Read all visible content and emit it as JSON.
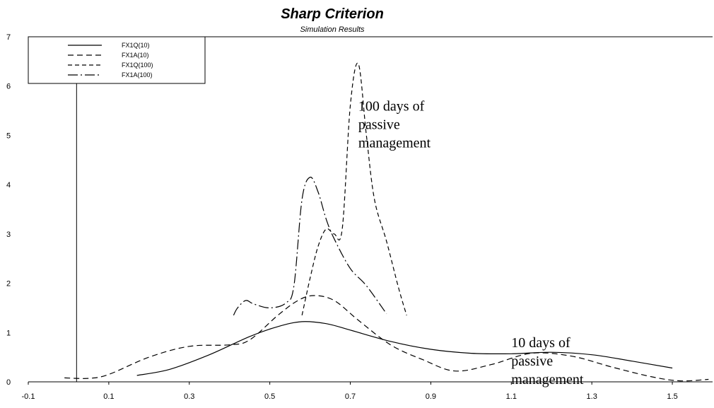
{
  "chart_data": {
    "type": "line",
    "title": "Sharp Criterion",
    "subtitle": "Simulation Results",
    "xlabel": "",
    "ylabel": "",
    "xlim": [
      -0.1,
      1.6
    ],
    "ylim": [
      0,
      7
    ],
    "x_ticks": [
      -0.1,
      0.1,
      0.3,
      0.5,
      0.7,
      0.9,
      1.1,
      1.3,
      1.5
    ],
    "y_ticks": [
      0,
      1,
      2,
      3,
      4,
      5,
      6,
      7
    ],
    "x_tick_labels": [
      "-0.1",
      "0.1",
      "0.3",
      "0.5",
      "0.7",
      "0.9",
      "1.1",
      "1.3",
      "1.5"
    ],
    "y_tick_labels": [
      "0",
      "1",
      "2",
      "3",
      "4",
      "5",
      "6",
      "7"
    ],
    "grid": false,
    "legend_position": "top-left",
    "series": [
      {
        "name": "FX1Q(10)",
        "dash": "solid",
        "color": "#000000",
        "points": [
          [
            0.17,
            0.13
          ],
          [
            0.25,
            0.25
          ],
          [
            0.35,
            0.55
          ],
          [
            0.45,
            0.92
          ],
          [
            0.52,
            1.12
          ],
          [
            0.58,
            1.22
          ],
          [
            0.64,
            1.18
          ],
          [
            0.7,
            1.05
          ],
          [
            0.8,
            0.82
          ],
          [
            0.9,
            0.66
          ],
          [
            1.0,
            0.58
          ],
          [
            1.1,
            0.57
          ],
          [
            1.2,
            0.6
          ],
          [
            1.3,
            0.55
          ],
          [
            1.4,
            0.42
          ],
          [
            1.5,
            0.28
          ]
        ]
      },
      {
        "name": "FX1A(10)",
        "dash": "8,5",
        "color": "#000000",
        "points": [
          [
            -0.01,
            0.08
          ],
          [
            0.05,
            0.07
          ],
          [
            0.1,
            0.15
          ],
          [
            0.2,
            0.5
          ],
          [
            0.3,
            0.72
          ],
          [
            0.4,
            0.75
          ],
          [
            0.45,
            0.85
          ],
          [
            0.52,
            1.35
          ],
          [
            0.57,
            1.65
          ],
          [
            0.61,
            1.75
          ],
          [
            0.66,
            1.65
          ],
          [
            0.72,
            1.25
          ],
          [
            0.8,
            0.75
          ],
          [
            0.88,
            0.45
          ],
          [
            0.96,
            0.22
          ],
          [
            1.05,
            0.35
          ],
          [
            1.15,
            0.58
          ],
          [
            1.25,
            0.52
          ],
          [
            1.35,
            0.3
          ],
          [
            1.45,
            0.1
          ],
          [
            1.52,
            0.02
          ],
          [
            1.59,
            0.05
          ]
        ]
      },
      {
        "name": "FX1Q(100)",
        "dash": "6,4",
        "color": "#000000",
        "points": [
          [
            0.58,
            1.35
          ],
          [
            0.6,
            2.1
          ],
          [
            0.62,
            2.75
          ],
          [
            0.64,
            3.1
          ],
          [
            0.66,
            3.0
          ],
          [
            0.68,
            3.1
          ],
          [
            0.7,
            5.6
          ],
          [
            0.72,
            6.45
          ],
          [
            0.74,
            5.0
          ],
          [
            0.76,
            3.7
          ],
          [
            0.79,
            2.85
          ],
          [
            0.82,
            1.9
          ],
          [
            0.84,
            1.35
          ]
        ]
      },
      {
        "name": "FX1A(100)",
        "dash": "14,4,2,4",
        "color": "#000000",
        "points": [
          [
            0.41,
            1.35
          ],
          [
            0.42,
            1.5
          ],
          [
            0.44,
            1.65
          ],
          [
            0.46,
            1.58
          ],
          [
            0.5,
            1.5
          ],
          [
            0.54,
            1.6
          ],
          [
            0.56,
            1.95
          ],
          [
            0.58,
            3.7
          ],
          [
            0.6,
            4.15
          ],
          [
            0.62,
            3.85
          ],
          [
            0.64,
            3.3
          ],
          [
            0.66,
            2.9
          ],
          [
            0.7,
            2.3
          ],
          [
            0.74,
            1.95
          ],
          [
            0.79,
            1.38
          ]
        ]
      }
    ],
    "vertical_line_x": 0.02,
    "annotations": [
      {
        "lines": [
          "100 days of",
          "passive",
          "management"
        ],
        "x": 0.72,
        "y": 5.5
      },
      {
        "lines": [
          "10 days of",
          "passive",
          "management"
        ],
        "x": 1.1,
        "y": 0.7
      }
    ]
  }
}
